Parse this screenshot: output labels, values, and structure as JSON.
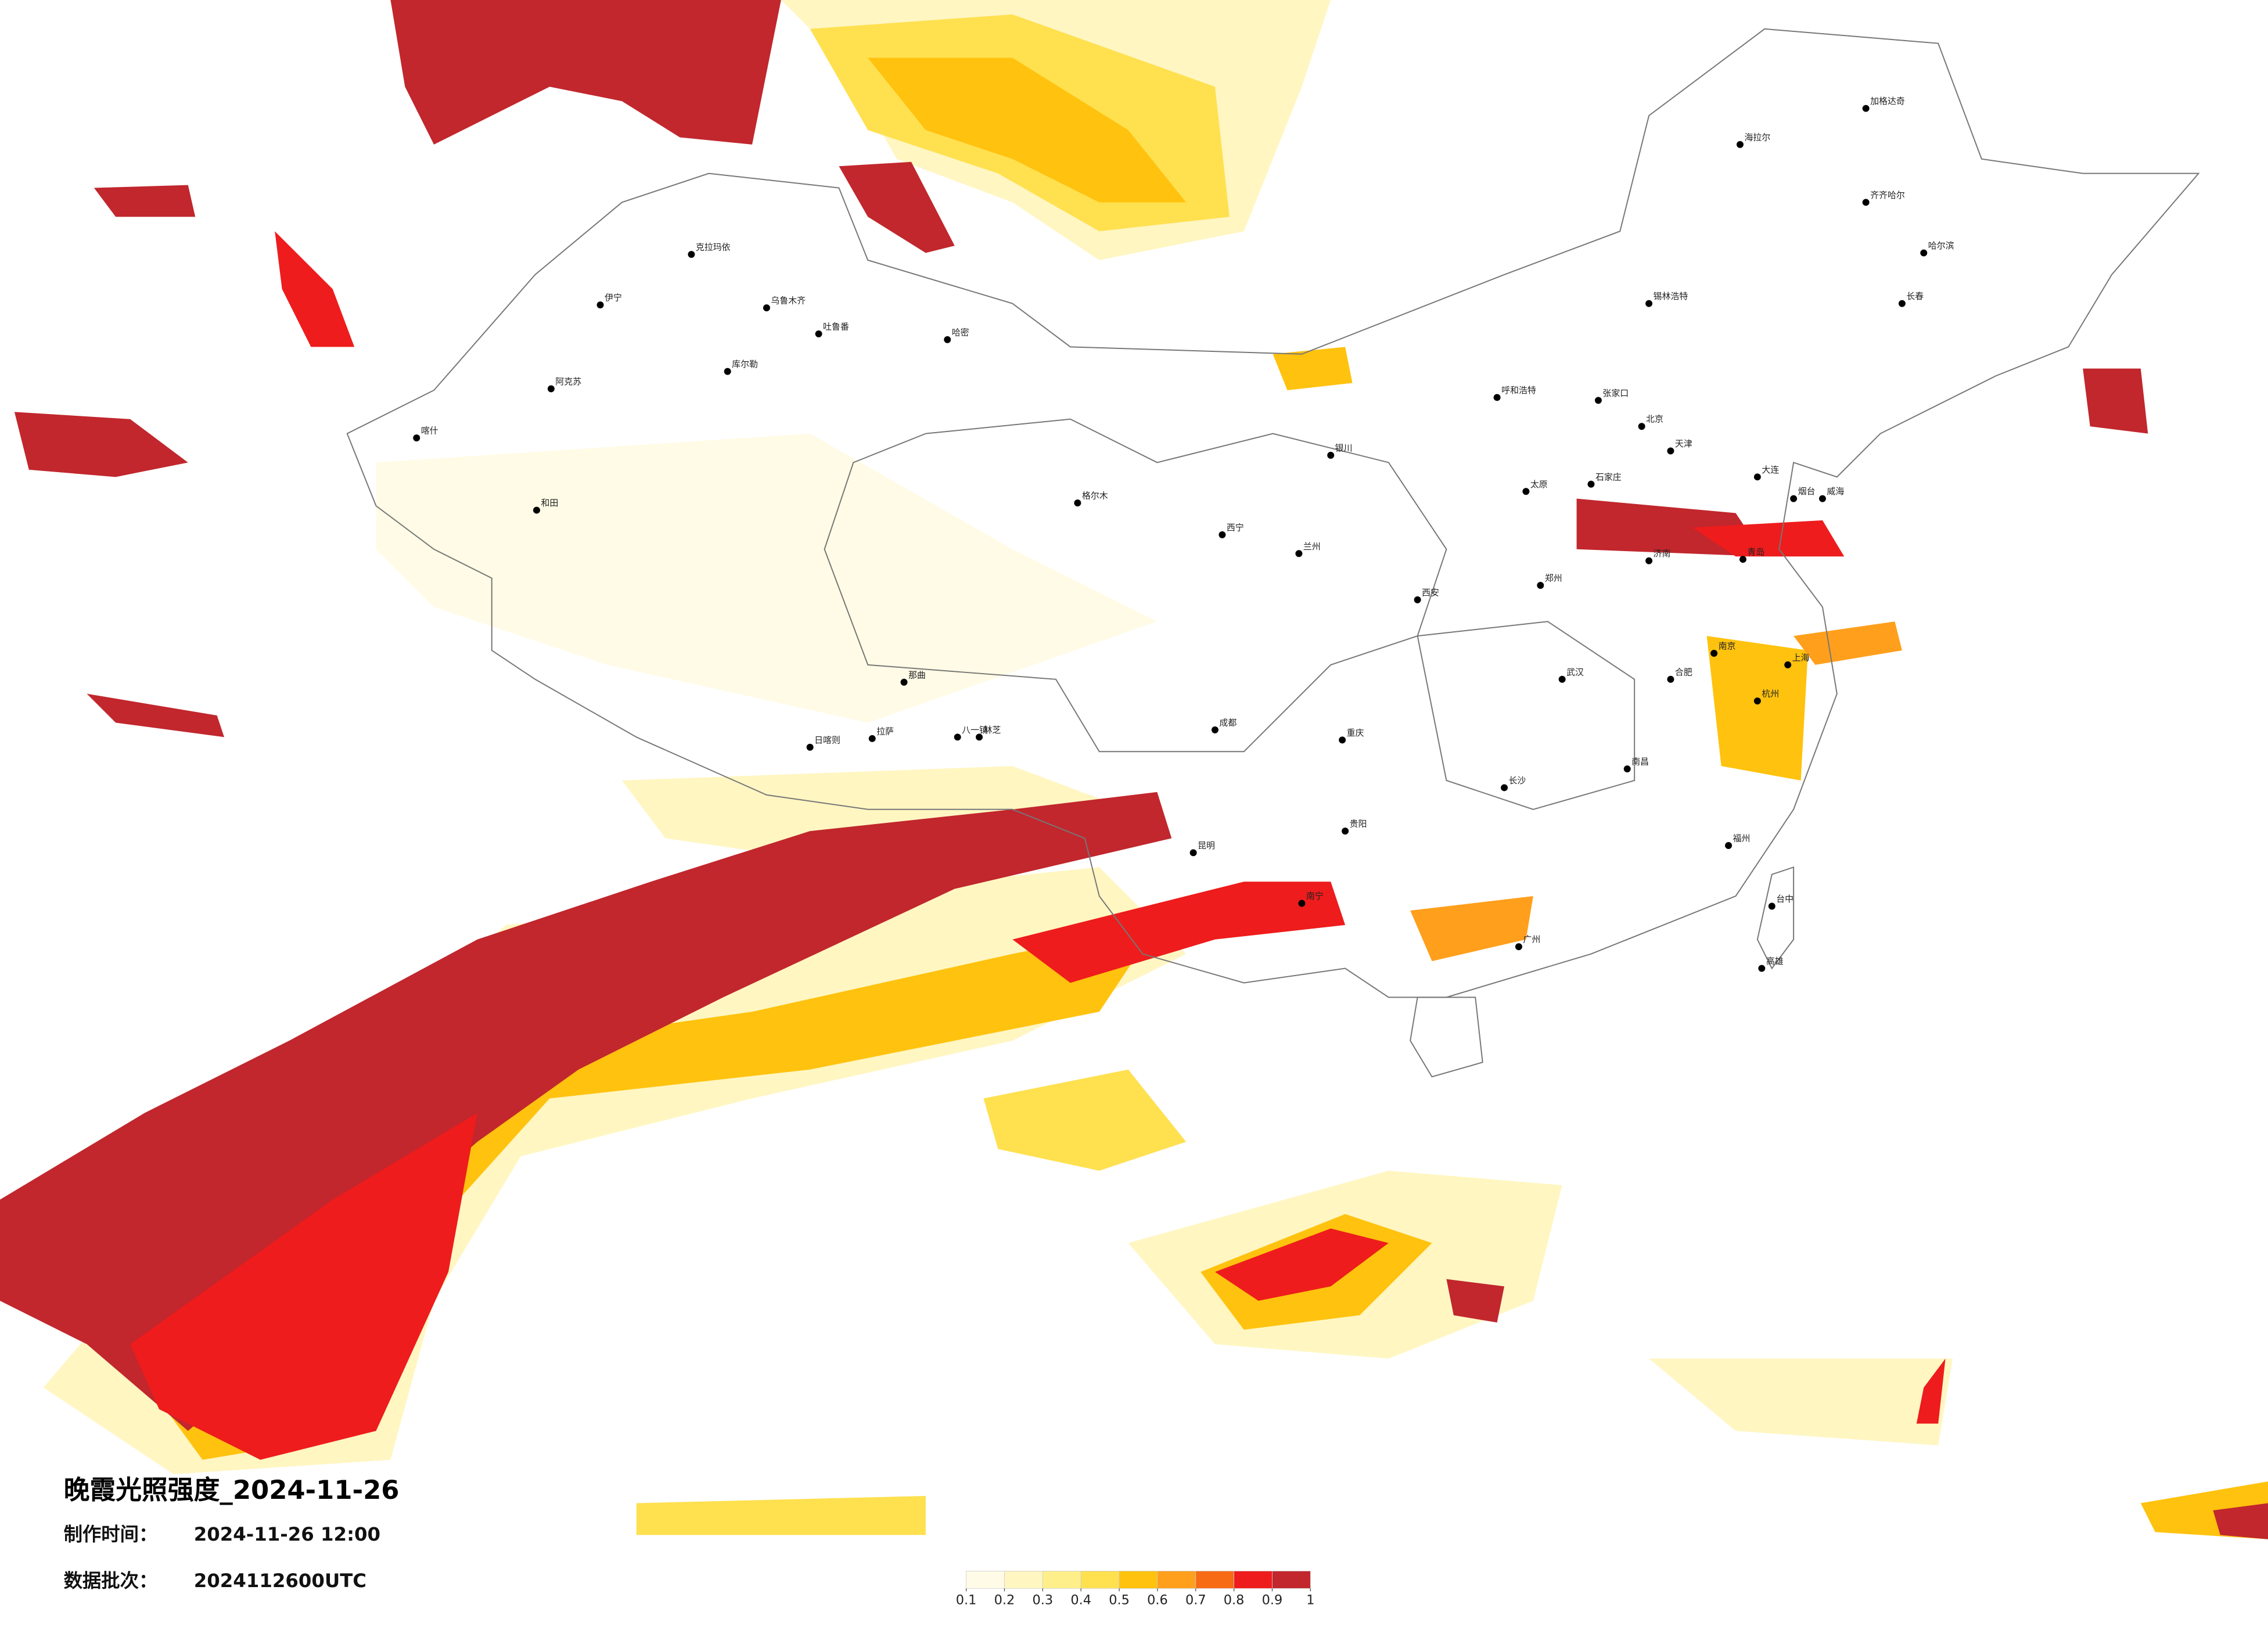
{
  "title": "晚霞光照强度_2024-11-26",
  "made_time": {
    "label": "制作时间：",
    "value": "2024-11-26 12:00"
  },
  "batch": {
    "label": "数据批次：",
    "value": "2024112600UTC"
  },
  "legend": {
    "ticks": [
      0.1,
      0.2,
      0.3,
      0.4,
      0.5,
      0.6,
      0.7,
      0.8,
      0.9,
      1
    ],
    "colors": [
      "#fffbe6",
      "#fff6c2",
      "#ffef8a",
      "#ffe04f",
      "#ffc20e",
      "#ff9f1c",
      "#f76b15",
      "#ee1c1c",
      "#c1272d"
    ]
  },
  "cities": [
    "海拉尔",
    "加格达奇",
    "齐齐哈尔",
    "哈尔滨",
    "长春",
    "锡林浩特",
    "呼和浩特",
    "张家口",
    "北京",
    "天津",
    "石家庄",
    "太原",
    "济南",
    "郑州",
    "西安",
    "兰州",
    "西宁",
    "银川",
    "乌鲁木齐",
    "克拉玛依",
    "伊宁",
    "吐鲁番",
    "哈密",
    "库尔勒",
    "阿克苏",
    "喀什",
    "和田",
    "格尔木",
    "拉萨",
    "日喀则",
    "那曲",
    "八一镇",
    "林芝",
    "成都",
    "重庆",
    "贵阳",
    "昆明",
    "南宁",
    "广州",
    "长沙",
    "武汉",
    "南昌",
    "福州",
    "杭州",
    "上海",
    "南京",
    "合肥",
    "台中",
    "高雄",
    "大连",
    "青岛",
    "烟台",
    "威海"
  ]
}
